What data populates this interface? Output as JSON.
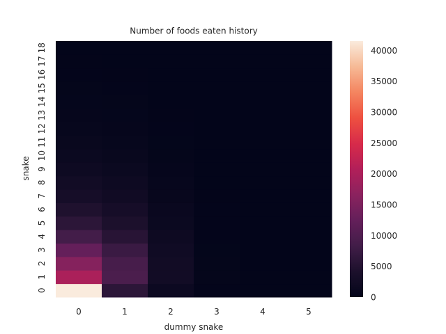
{
  "chart_data": {
    "type": "heatmap",
    "title": "Number of foods eaten history",
    "xlabel": "dummy snake",
    "ylabel": "snake",
    "x_categories": [
      "0",
      "1",
      "2",
      "3",
      "4",
      "5"
    ],
    "y_categories": [
      "0",
      "1",
      "2",
      "3",
      "4",
      "5",
      "6",
      "7",
      "8",
      "9",
      "10",
      "11",
      "12",
      "13",
      "14",
      "15",
      "16",
      "17",
      "18"
    ],
    "values": [
      [
        41500,
        6000,
        1500,
        150,
        60,
        30
      ],
      [
        20000,
        9500,
        2500,
        250,
        80,
        40
      ],
      [
        16000,
        9000,
        2500,
        250,
        80,
        40
      ],
      [
        12500,
        7500,
        2200,
        200,
        70,
        30
      ],
      [
        8500,
        5500,
        1800,
        180,
        60,
        30
      ],
      [
        6000,
        4200,
        1400,
        150,
        50,
        20
      ],
      [
        4500,
        3200,
        1100,
        120,
        40,
        20
      ],
      [
        3200,
        2400,
        800,
        100,
        30,
        15
      ],
      [
        2500,
        1800,
        600,
        80,
        25,
        10
      ],
      [
        1900,
        1400,
        450,
        60,
        20,
        10
      ],
      [
        1400,
        1000,
        300,
        40,
        15,
        5
      ],
      [
        1000,
        700,
        200,
        30,
        10,
        5
      ],
      [
        700,
        500,
        150,
        20,
        8,
        4
      ],
      [
        500,
        350,
        100,
        15,
        5,
        3
      ],
      [
        350,
        250,
        70,
        10,
        4,
        2
      ],
      [
        250,
        180,
        50,
        8,
        3,
        1
      ],
      [
        150,
        100,
        30,
        5,
        2,
        1
      ],
      [
        100,
        70,
        20,
        3,
        1,
        0
      ],
      [
        60,
        40,
        10,
        2,
        1,
        0
      ]
    ],
    "colorbar": {
      "colormap": "rocket",
      "vmin": 0,
      "vmax": 41500,
      "ticks": [
        0,
        5000,
        10000,
        15000,
        20000,
        25000,
        30000,
        35000,
        40000
      ]
    }
  }
}
